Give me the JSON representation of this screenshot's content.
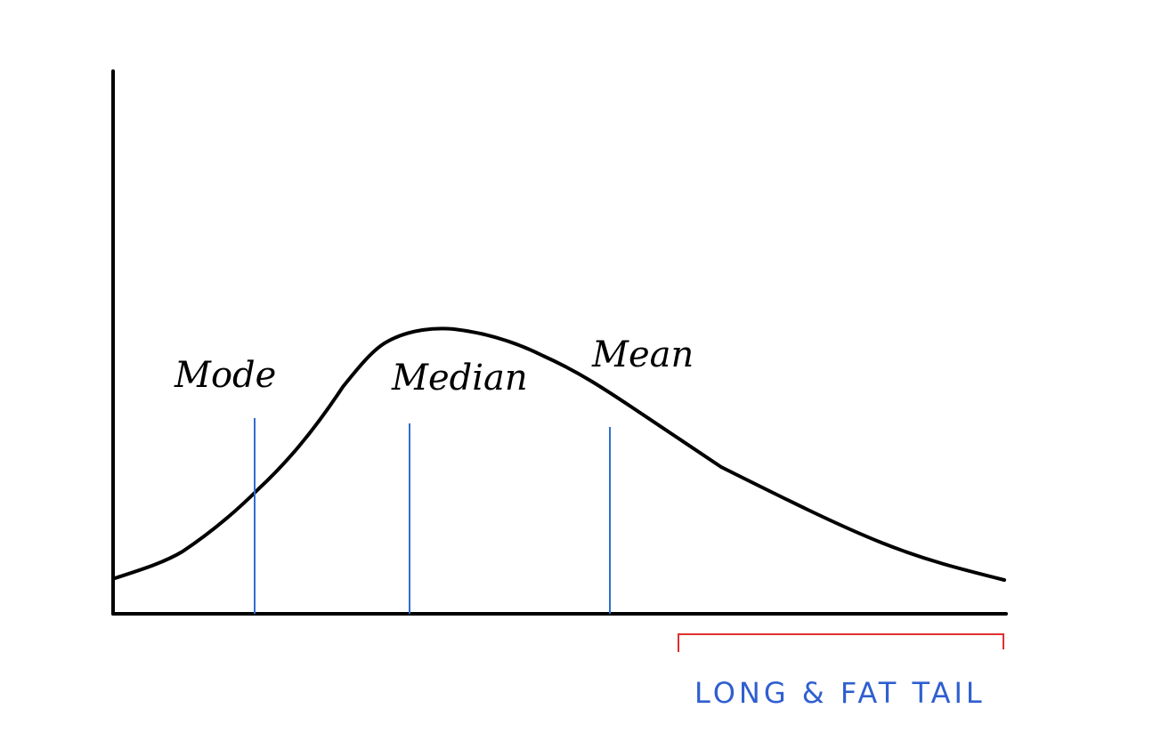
{
  "labels": {
    "mode": "Mode",
    "median": "Median",
    "mean": "Mean",
    "tail": "LONG & FAT TAIL"
  },
  "colors": {
    "axis": "#000000",
    "curve": "#000000",
    "marker_line": "#2f6fd0",
    "tail_bracket": "#e03030",
    "tail_text": "#2f5fd0"
  }
}
